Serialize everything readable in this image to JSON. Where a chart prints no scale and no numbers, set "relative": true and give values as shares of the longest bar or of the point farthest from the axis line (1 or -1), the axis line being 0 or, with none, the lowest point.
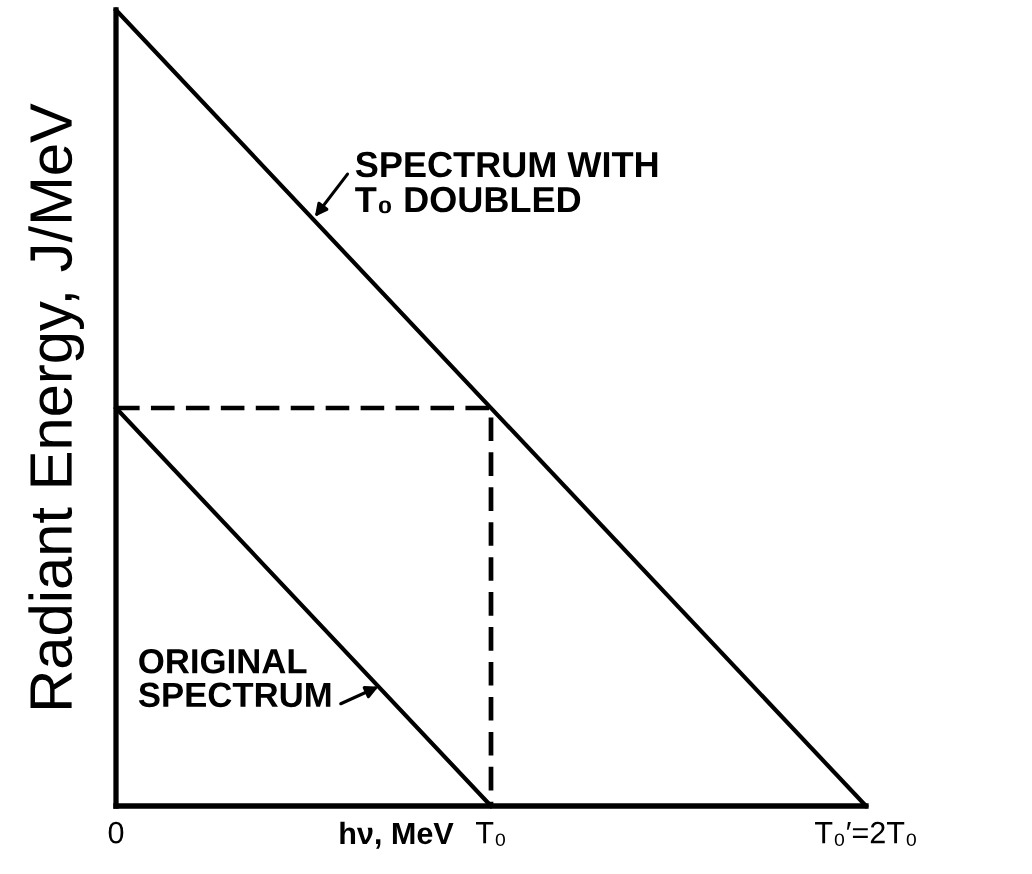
{
  "chart_data": {
    "type": "line",
    "relative": true,
    "xlabel": "hν, MeV",
    "ylabel": "Radiant Energy, J/MeV",
    "xlim": [
      0,
      2
    ],
    "xticks": [
      {
        "value": 0,
        "label": "0"
      },
      {
        "value": 1,
        "label": "T₀"
      },
      {
        "value": 2,
        "label": "T₀′=2T₀"
      }
    ],
    "tick_labels": "x",
    "series": [
      {
        "x": [
          0,
          2
        ],
        "values": [
          1,
          0
        ],
        "color": "#000000"
      },
      {
        "x": [
          0,
          1
        ],
        "values": [
          0.5,
          0
        ],
        "color": "#000000"
      },
      {
        "x": [
          0,
          1,
          1
        ],
        "values": [
          0.5,
          0.5,
          0
        ],
        "color": "#000000",
        "line_style": "dashed"
      }
    ],
    "annotations": [
      {
        "text": "SPECTRUM WITH\nT₀ DOUBLED",
        "x": 0.53,
        "y": 0.74
      },
      {
        "text": "ORIGINAL\nSPECTRUM",
        "x": 0.7,
        "y": 0.15
      }
    ]
  }
}
